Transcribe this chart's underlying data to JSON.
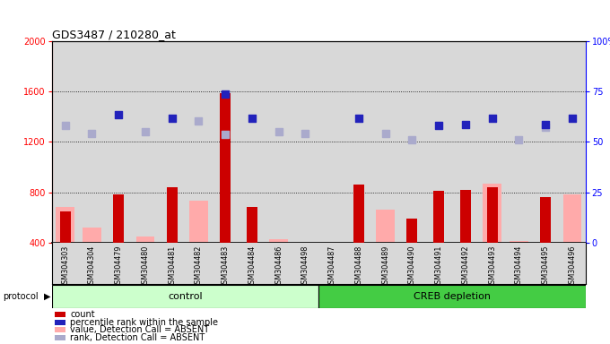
{
  "title": "GDS3487 / 210280_at",
  "samples": [
    "GSM304303",
    "GSM304304",
    "GSM304479",
    "GSM304480",
    "GSM304481",
    "GSM304482",
    "GSM304483",
    "GSM304484",
    "GSM304486",
    "GSM304498",
    "GSM304487",
    "GSM304488",
    "GSM304489",
    "GSM304490",
    "GSM304491",
    "GSM304492",
    "GSM304493",
    "GSM304494",
    "GSM304495",
    "GSM304496"
  ],
  "control_count": 10,
  "creb_count": 10,
  "red_bars": [
    650,
    0,
    780,
    0,
    840,
    0,
    1590,
    680,
    0,
    0,
    0,
    860,
    0,
    590,
    810,
    820,
    840,
    0,
    760,
    0
  ],
  "pink_bars": [
    680,
    520,
    0,
    450,
    0,
    730,
    380,
    0,
    430,
    390,
    380,
    0,
    660,
    0,
    0,
    0,
    870,
    410,
    0,
    780
  ],
  "blue_squares": [
    0,
    0,
    1420,
    0,
    1390,
    0,
    1580,
    1390,
    0,
    0,
    0,
    1390,
    0,
    0,
    1330,
    1340,
    1390,
    0,
    1340,
    1390
  ],
  "lavender_squares": [
    1330,
    1270,
    0,
    1280,
    0,
    1370,
    1260,
    0,
    1280,
    1270,
    0,
    0,
    1270,
    1220,
    0,
    0,
    0,
    1220,
    1320,
    0
  ],
  "ylim_left": [
    400,
    2000
  ],
  "ylim_right": [
    0,
    100
  ],
  "yticks_left": [
    400,
    800,
    1200,
    1600,
    2000
  ],
  "yticks_right": [
    0,
    25,
    50,
    75,
    100
  ],
  "grid_lines": [
    800,
    1200,
    1600
  ],
  "col_bg": "#d8d8d8",
  "red_color": "#cc0000",
  "pink_color": "#ffaaaa",
  "blue_color": "#2222bb",
  "lavender_color": "#aaaacc",
  "bar_width": 0.4,
  "square_size": 40,
  "ctrl_color": "#ccffcc",
  "creb_color": "#44cc44",
  "legend_items": [
    "count",
    "percentile rank within the sample",
    "value, Detection Call = ABSENT",
    "rank, Detection Call = ABSENT"
  ],
  "legend_colors": [
    "#cc0000",
    "#2222bb",
    "#ffaaaa",
    "#aaaacc"
  ]
}
